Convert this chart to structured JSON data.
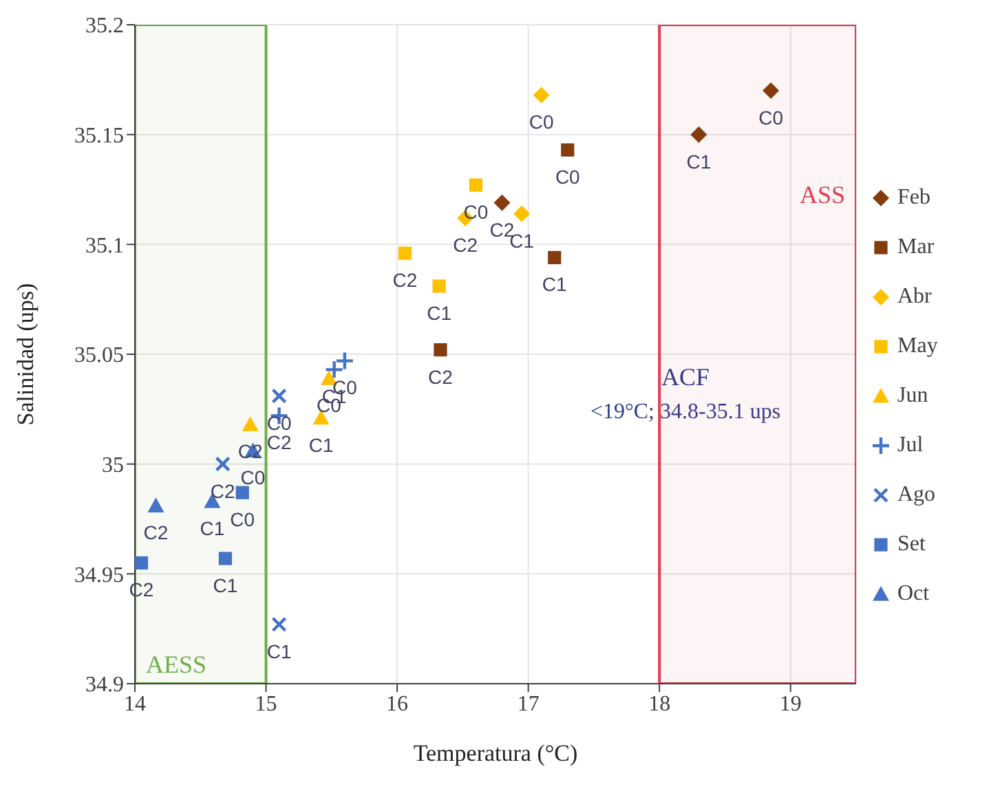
{
  "chart_data": {
    "type": "scatter",
    "xlabel": "Temperatura (°C)",
    "ylabel": "Salinidad (ups)",
    "xlim": [
      14,
      19.5
    ],
    "xticks": [
      14,
      15,
      16,
      17,
      18,
      19
    ],
    "ylim": [
      34.9,
      35.2
    ],
    "yticks": [
      34.9,
      34.95,
      35,
      35.05,
      35.1,
      35.15,
      35.2
    ],
    "grid": true,
    "legend": "right",
    "bands": [
      {
        "axis": "x",
        "from": 14,
        "to": 15,
        "label": "AESS",
        "color": "#70ad47"
      },
      {
        "axis": "x",
        "from": 18,
        "to": 19.5,
        "label": "ASS",
        "color": "#e03c50"
      }
    ],
    "annotations": [
      "ACF",
      "<19°C; 34.8-35.1 ups"
    ],
    "series": [
      {
        "name": "Feb",
        "color": "#843c0c",
        "marker": "diamond",
        "x": [
          18.85,
          18.3,
          16.8
        ],
        "values": [
          35.17,
          35.15,
          35.119
        ],
        "value_labels": [
          "C0",
          "C1",
          "C2"
        ]
      },
      {
        "name": "Mar",
        "color": "#843c0c",
        "marker": "square",
        "x": [
          17.3,
          17.2,
          16.33
        ],
        "values": [
          35.143,
          35.094,
          35.052
        ],
        "value_labels": [
          "C0",
          "C1",
          "C2"
        ]
      },
      {
        "name": "Abr",
        "color": "#ffc000",
        "marker": "diamond",
        "x": [
          17.1,
          16.95,
          16.52
        ],
        "values": [
          35.168,
          35.114,
          35.112
        ],
        "value_labels": [
          "C0",
          "C1",
          "C2"
        ]
      },
      {
        "name": "May",
        "color": "#ffc000",
        "marker": "square",
        "x": [
          16.6,
          16.32,
          16.06
        ],
        "values": [
          35.127,
          35.081,
          35.096
        ],
        "value_labels": [
          "C0",
          "C1",
          "C2"
        ]
      },
      {
        "name": "Jun",
        "color": "#ffc000",
        "marker": "triangle",
        "x": [
          15.48,
          15.42,
          14.88
        ],
        "values": [
          35.039,
          35.021,
          35.018
        ],
        "value_labels": [
          "C0",
          "C1",
          "C2"
        ]
      },
      {
        "name": "Jul",
        "color": "#4472c4",
        "marker": "plus",
        "x": [
          15.6,
          15.52,
          15.1
        ],
        "values": [
          35.047,
          35.043,
          35.022
        ],
        "value_labels": [
          "C0",
          "C1",
          "C2"
        ]
      },
      {
        "name": "Ago",
        "color": "#4472c4",
        "marker": "cross",
        "x": [
          15.1,
          15.1,
          14.67
        ],
        "values": [
          35.031,
          34.927,
          35.0
        ],
        "value_labels": [
          "C0",
          "C1",
          "C2"
        ]
      },
      {
        "name": "Set",
        "color": "#4472c4",
        "marker": "square",
        "x": [
          14.82,
          14.69,
          14.05
        ],
        "values": [
          34.987,
          34.957,
          34.955
        ],
        "value_labels": [
          "C0",
          "C1",
          "C2"
        ]
      },
      {
        "name": "Oct",
        "color": "#4472c4",
        "marker": "triangle",
        "x": [
          14.9,
          14.59,
          14.16
        ],
        "values": [
          35.006,
          34.983,
          34.981
        ],
        "value_labels": [
          "C0",
          "C1",
          "C2"
        ]
      }
    ]
  }
}
